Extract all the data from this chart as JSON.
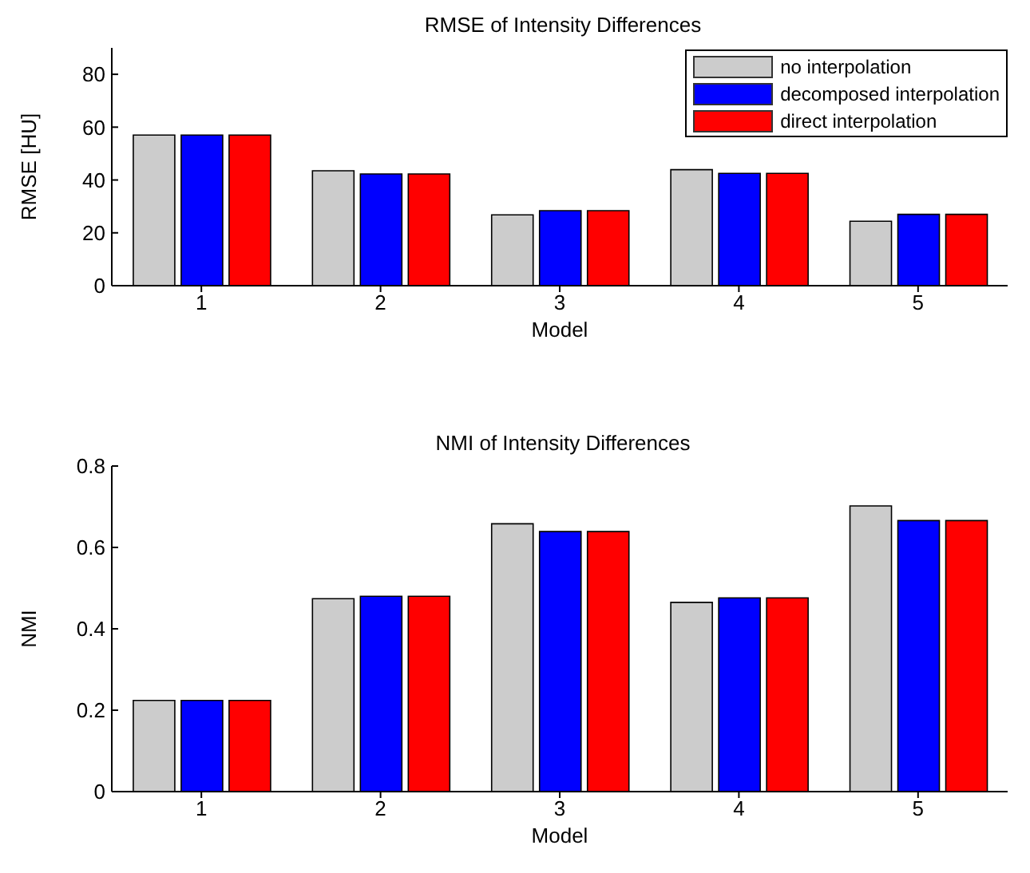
{
  "chart_data": [
    {
      "type": "bar",
      "title": "RMSE of Intensity Differences",
      "xlabel": "Model",
      "ylabel": "RMSE [HU]",
      "categories": [
        "1",
        "2",
        "3",
        "4",
        "5"
      ],
      "series": [
        {
          "name": "no interpolation",
          "color": "#cccccc",
          "values": [
            57.0,
            43.5,
            26.8,
            43.9,
            24.4
          ]
        },
        {
          "name": "decomposed interpolation",
          "color": "#0000ff",
          "values": [
            57.0,
            42.3,
            28.4,
            42.5,
            27.0
          ]
        },
        {
          "name": "direct interpolation",
          "color": "#ff0000",
          "values": [
            57.0,
            42.3,
            28.4,
            42.5,
            27.0
          ]
        }
      ],
      "ylim": [
        0,
        90
      ],
      "yticks": [
        0,
        20,
        40,
        60,
        80
      ],
      "grid": false,
      "legend": "top right"
    },
    {
      "type": "bar",
      "title": "NMI of Intensity Differences",
      "xlabel": "Model",
      "ylabel": "NMI",
      "categories": [
        "1",
        "2",
        "3",
        "4",
        "5"
      ],
      "series": [
        {
          "color": "#cccccc",
          "values": [
            0.224,
            0.474,
            0.658,
            0.465,
            0.702
          ]
        },
        {
          "color": "#0000ff",
          "values": [
            0.224,
            0.48,
            0.639,
            0.476,
            0.666
          ]
        },
        {
          "color": "#ff0000",
          "values": [
            0.224,
            0.48,
            0.639,
            0.476,
            0.666
          ]
        }
      ],
      "ylim": [
        0,
        0.8
      ],
      "yticks": [
        0,
        0.2,
        0.4,
        0.6,
        0.8
      ],
      "grid": false
    }
  ]
}
